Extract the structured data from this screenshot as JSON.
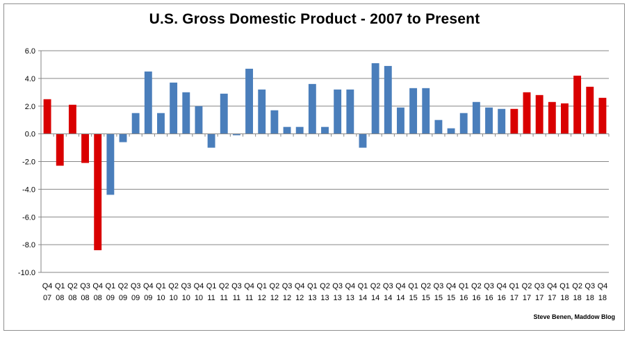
{
  "chart_data": {
    "type": "bar",
    "title": "U.S. Gross Domestic Product - 2007 to Present",
    "credit": "Steve Benen, Maddow Blog",
    "xlabel": "",
    "ylabel": "",
    "ylim": [
      -10.0,
      6.0
    ],
    "yticks": [
      "6.0",
      "4.0",
      "2.0",
      "0.0",
      "-2.0",
      "-4.0",
      "-6.0",
      "-8.0",
      "-10.0"
    ],
    "ytick_values": [
      6,
      4,
      2,
      0,
      -2,
      -4,
      -6,
      -8,
      -10
    ],
    "grid": true,
    "legend": "none",
    "colors": {
      "red": "#d90000",
      "blue": "#4a7ebb",
      "grid": "#868686",
      "axis": "#868686"
    },
    "categories": [
      [
        "Q4",
        "07"
      ],
      [
        "Q1",
        "08"
      ],
      [
        "Q2",
        "08"
      ],
      [
        "Q3",
        "08"
      ],
      [
        "Q4",
        "08"
      ],
      [
        "Q1",
        "09"
      ],
      [
        "Q2",
        "09"
      ],
      [
        "Q3",
        "09"
      ],
      [
        "Q4",
        "09"
      ],
      [
        "Q1",
        "10"
      ],
      [
        "Q2",
        "10"
      ],
      [
        "Q3",
        "10"
      ],
      [
        "Q4",
        "10"
      ],
      [
        "Q1",
        "11"
      ],
      [
        "Q2",
        "11"
      ],
      [
        "Q3",
        "11"
      ],
      [
        "Q4",
        "11"
      ],
      [
        "Q1",
        "12"
      ],
      [
        "Q2",
        "12"
      ],
      [
        "Q3",
        "12"
      ],
      [
        "Q4",
        "12"
      ],
      [
        "Q1",
        "13"
      ],
      [
        "Q2",
        "13"
      ],
      [
        "Q3",
        "13"
      ],
      [
        "Q4",
        "13"
      ],
      [
        "Q1",
        "14"
      ],
      [
        "Q2",
        "14"
      ],
      [
        "Q3",
        "14"
      ],
      [
        "Q4",
        "14"
      ],
      [
        "Q1",
        "15"
      ],
      [
        "Q2",
        "15"
      ],
      [
        "Q3",
        "15"
      ],
      [
        "Q4",
        "15"
      ],
      [
        "Q1",
        "16"
      ],
      [
        "Q2",
        "16"
      ],
      [
        "Q3",
        "16"
      ],
      [
        "Q4",
        "16"
      ],
      [
        "Q1",
        "17"
      ],
      [
        "Q2",
        "17"
      ],
      [
        "Q3",
        "17"
      ],
      [
        "Q4",
        "17"
      ],
      [
        "Q1",
        "18"
      ],
      [
        "Q2",
        "18"
      ],
      [
        "Q3",
        "18"
      ],
      [
        "Q4",
        "18"
      ]
    ],
    "values": [
      2.5,
      -2.3,
      2.1,
      -2.1,
      -8.4,
      -4.4,
      -0.6,
      1.5,
      4.5,
      1.5,
      3.7,
      3.0,
      2.0,
      -1.0,
      2.9,
      -0.1,
      4.7,
      3.2,
      1.7,
      0.5,
      0.5,
      3.6,
      0.5,
      3.2,
      3.2,
      -1.0,
      5.1,
      4.9,
      1.9,
      3.3,
      3.3,
      1.0,
      0.4,
      1.5,
      2.3,
      1.9,
      1.8,
      1.8,
      3.0,
      2.8,
      2.3,
      2.2,
      4.2,
      3.4,
      2.6
    ],
    "bar_colors": [
      "red",
      "red",
      "red",
      "red",
      "red",
      "blue",
      "blue",
      "blue",
      "blue",
      "blue",
      "blue",
      "blue",
      "blue",
      "blue",
      "blue",
      "blue",
      "blue",
      "blue",
      "blue",
      "blue",
      "blue",
      "blue",
      "blue",
      "blue",
      "blue",
      "blue",
      "blue",
      "blue",
      "blue",
      "blue",
      "blue",
      "blue",
      "blue",
      "blue",
      "blue",
      "blue",
      "blue",
      "red",
      "red",
      "red",
      "red",
      "red",
      "red",
      "red",
      "red"
    ]
  }
}
